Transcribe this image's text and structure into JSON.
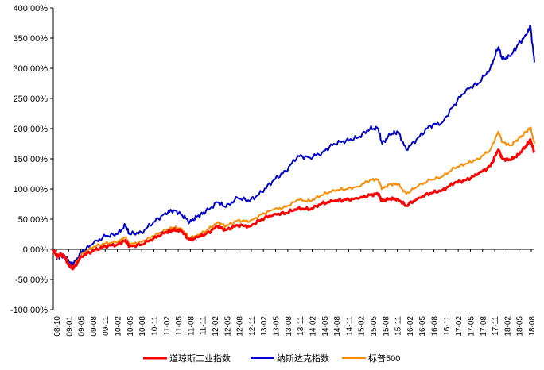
{
  "chart_data": {
    "type": "line",
    "title": "",
    "xlabel": "",
    "ylabel": "",
    "ylim": [
      -100,
      400
    ],
    "y_unit": "%",
    "y_ticks": [
      "400.00%",
      "350.00%",
      "300.00%",
      "250.00%",
      "200.00%",
      "150.00%",
      "100.00%",
      "50.00%",
      "0.00%",
      "-50.00%",
      "-100.00%"
    ],
    "y_tick_values": [
      400,
      350,
      300,
      250,
      200,
      150,
      100,
      50,
      0,
      -50,
      -100
    ],
    "x_ticks": [
      "08-10",
      "09-01",
      "09-05",
      "09-08",
      "09-11",
      "10-02",
      "10-05",
      "10-08",
      "10-11",
      "11-02",
      "11-05",
      "11-08",
      "11-11",
      "12-02",
      "12-05",
      "12-08",
      "12-11",
      "13-02",
      "13-05",
      "13-08",
      "13-11",
      "14-02",
      "14-05",
      "14-08",
      "14-11",
      "15-02",
      "15-05",
      "15-08",
      "15-11",
      "16-02",
      "16-05",
      "16-08",
      "16-11",
      "17-02",
      "17-05",
      "17-08",
      "17-11",
      "18-02",
      "18-05",
      "18-08"
    ],
    "legend_position": "bottom",
    "grid": false,
    "x": [
      "2008-10",
      "2008-11",
      "2008-12",
      "2009-01",
      "2009-02",
      "2009-03",
      "2009-05",
      "2009-08",
      "2009-11",
      "2010-02",
      "2010-04",
      "2010-05",
      "2010-08",
      "2010-11",
      "2011-02",
      "2011-04",
      "2011-06",
      "2011-08",
      "2011-10",
      "2011-12",
      "2012-03",
      "2012-05",
      "2012-08",
      "2012-11",
      "2013-02",
      "2013-05",
      "2013-08",
      "2013-11",
      "2014-02",
      "2014-05",
      "2014-08",
      "2014-11",
      "2015-02",
      "2015-05",
      "2015-07",
      "2015-08",
      "2015-10",
      "2015-12",
      "2016-02",
      "2016-05",
      "2016-08",
      "2016-11",
      "2017-02",
      "2017-05",
      "2017-08",
      "2017-11",
      "2018-01",
      "2018-02",
      "2018-04",
      "2018-06",
      "2018-08",
      "2018-09",
      "2018-10"
    ],
    "series": [
      {
        "name": "道琼斯工业指数",
        "color": "#ff0000",
        "stroke_width": 3,
        "values": [
          0,
          -12,
          -8,
          -15,
          -28,
          -32,
          -12,
          -2,
          5,
          8,
          15,
          5,
          8,
          18,
          28,
          32,
          30,
          15,
          20,
          25,
          38,
          32,
          40,
          38,
          50,
          58,
          60,
          68,
          66,
          76,
          80,
          82,
          84,
          90,
          92,
          80,
          84,
          83,
          72,
          85,
          93,
          98,
          110,
          115,
          125,
          138,
          165,
          150,
          148,
          157,
          172,
          182,
          160
        ]
      },
      {
        "name": "纳斯达克指数",
        "color": "#0000cc",
        "stroke_width": 2,
        "values": [
          0,
          -15,
          -10,
          -12,
          -22,
          -25,
          -5,
          10,
          22,
          25,
          40,
          25,
          28,
          45,
          60,
          65,
          58,
          45,
          55,
          62,
          78,
          70,
          85,
          80,
          95,
          115,
          130,
          155,
          152,
          160,
          175,
          180,
          185,
          200,
          200,
          175,
          190,
          195,
          165,
          185,
          205,
          210,
          240,
          265,
          275,
          300,
          335,
          315,
          320,
          340,
          355,
          370,
          310
        ]
      },
      {
        "name": "标普500",
        "color": "#ff8c00",
        "stroke_width": 2,
        "values": [
          0,
          -14,
          -9,
          -12,
          -26,
          -30,
          -8,
          4,
          10,
          12,
          20,
          8,
          12,
          22,
          32,
          36,
          34,
          18,
          24,
          30,
          45,
          38,
          48,
          46,
          58,
          66,
          70,
          82,
          80,
          90,
          98,
          100,
          104,
          115,
          116,
          100,
          108,
          108,
          92,
          105,
          115,
          120,
          135,
          142,
          150,
          165,
          195,
          178,
          172,
          183,
          195,
          202,
          175
        ]
      }
    ]
  }
}
